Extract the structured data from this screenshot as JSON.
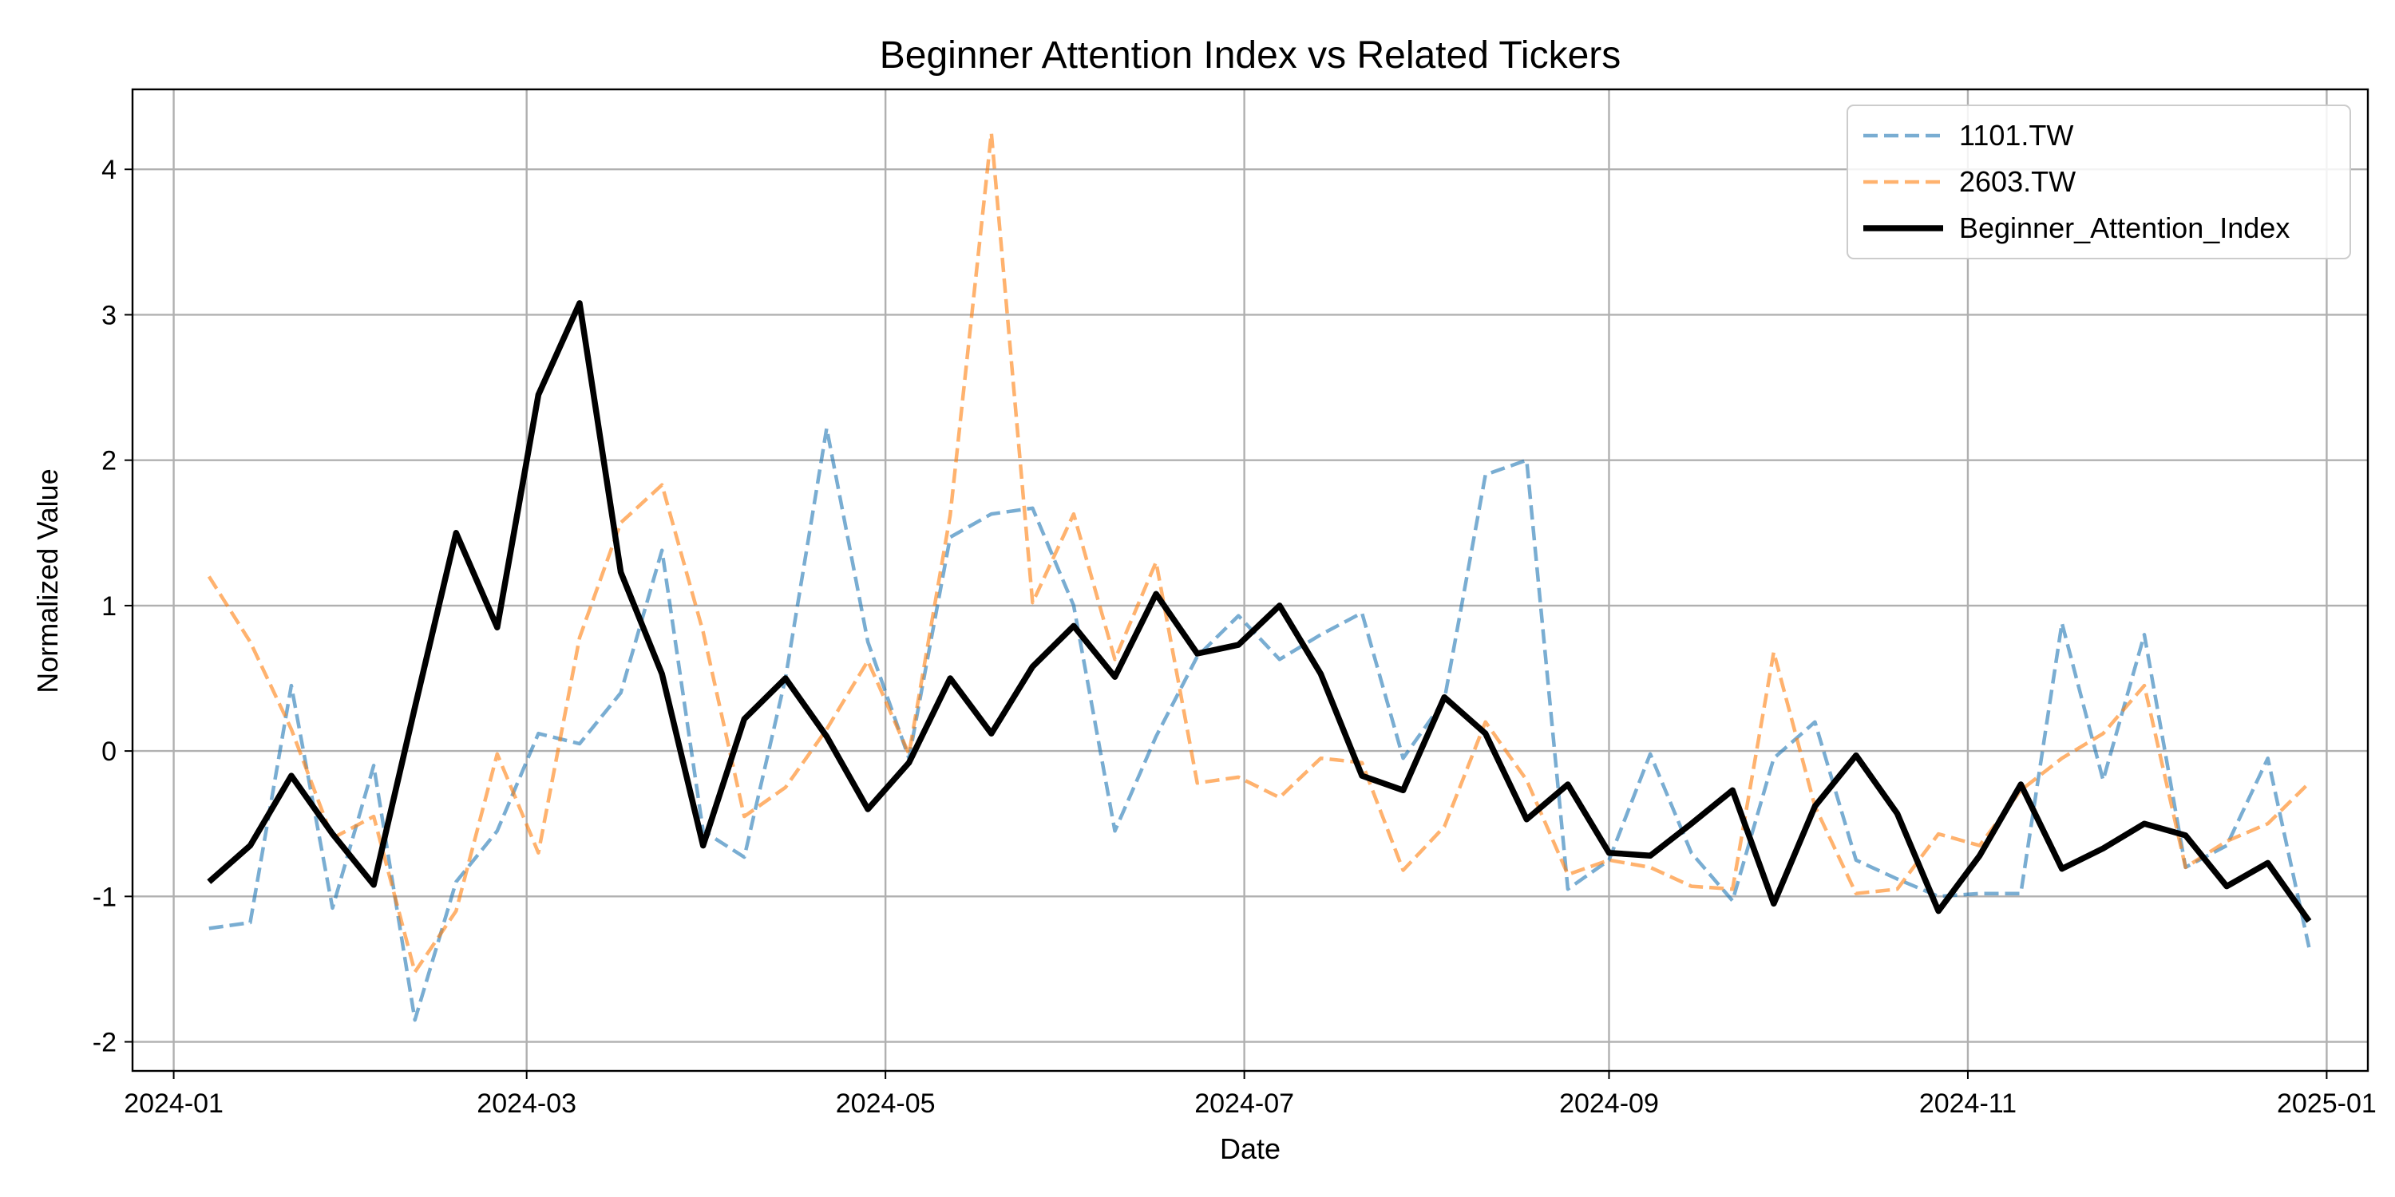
{
  "chart_data": {
    "type": "line",
    "title": "Beginner Attention Index vs Related Tickers",
    "xlabel": "Date",
    "ylabel": "Normalized Value",
    "xlim": [
      "2023-12-25",
      "2025-01-08"
    ],
    "ylim": [
      -2.2,
      4.55
    ],
    "grid": true,
    "legend_position": "top-right",
    "x_ticks": [
      "2024-01-01",
      "2024-03-01",
      "2024-05-01",
      "2024-07-01",
      "2024-09-01",
      "2024-11-01",
      "2025-01-01"
    ],
    "x_tick_labels": [
      "2024-01",
      "2024-03",
      "2024-05",
      "2024-07",
      "2024-09",
      "2024-11",
      "2025-01"
    ],
    "y_ticks": [
      -2,
      -1,
      0,
      1,
      2,
      3,
      4
    ],
    "y_tick_labels": [
      "-2",
      "-1",
      "0",
      "1",
      "2",
      "3",
      "4"
    ],
    "x": [
      "2024-01-07",
      "2024-01-14",
      "2024-01-21",
      "2024-01-28",
      "2024-02-04",
      "2024-02-11",
      "2024-02-18",
      "2024-02-25",
      "2024-03-03",
      "2024-03-10",
      "2024-03-17",
      "2024-03-24",
      "2024-03-31",
      "2024-04-07",
      "2024-04-14",
      "2024-04-21",
      "2024-04-28",
      "2024-05-05",
      "2024-05-12",
      "2024-05-19",
      "2024-05-26",
      "2024-06-02",
      "2024-06-09",
      "2024-06-16",
      "2024-06-23",
      "2024-06-30",
      "2024-07-07",
      "2024-07-14",
      "2024-07-21",
      "2024-07-28",
      "2024-08-04",
      "2024-08-11",
      "2024-08-18",
      "2024-08-25",
      "2024-09-01",
      "2024-09-08",
      "2024-09-15",
      "2024-09-22",
      "2024-09-29",
      "2024-10-06",
      "2024-10-13",
      "2024-10-20",
      "2024-10-27",
      "2024-11-03",
      "2024-11-10",
      "2024-11-17",
      "2024-11-24",
      "2024-12-01",
      "2024-12-08",
      "2024-12-15",
      "2024-12-22",
      "2024-12-29"
    ],
    "series": [
      {
        "name": "1101.TW",
        "color": "#1f77b4",
        "style": "dashed",
        "opacity": 0.6,
        "values": [
          -1.22,
          -1.18,
          0.45,
          -1.08,
          -0.1,
          -1.85,
          -0.9,
          -0.55,
          0.12,
          0.05,
          0.4,
          1.38,
          -0.55,
          -0.73,
          0.5,
          2.22,
          0.75,
          -0.05,
          1.47,
          1.63,
          1.67,
          1.0,
          -0.55,
          0.1,
          0.65,
          0.93,
          0.63,
          0.8,
          0.95,
          -0.05,
          0.35,
          1.9,
          2.0,
          -0.95,
          -0.75,
          -0.02,
          -0.7,
          -1.03,
          -0.05,
          0.2,
          -0.75,
          -0.88,
          -1.0,
          -0.98,
          -0.98,
          0.88,
          -0.2,
          0.8,
          -0.8,
          -0.65,
          -0.05,
          -1.35
        ]
      },
      {
        "name": "2603.TW",
        "color": "#ff7f0e",
        "style": "dashed",
        "opacity": 0.6,
        "values": [
          1.2,
          0.75,
          0.15,
          -0.6,
          -0.45,
          -1.52,
          -1.1,
          -0.02,
          -0.7,
          0.78,
          1.57,
          1.83,
          0.82,
          -0.45,
          -0.25,
          0.15,
          0.62,
          -0.02,
          1.62,
          4.25,
          1.02,
          1.63,
          0.63,
          1.3,
          -0.22,
          -0.18,
          -0.32,
          -0.05,
          -0.08,
          -0.82,
          -0.52,
          0.2,
          -0.2,
          -0.85,
          -0.75,
          -0.8,
          -0.93,
          -0.95,
          0.68,
          -0.38,
          -0.98,
          -0.95,
          -0.57,
          -0.65,
          -0.27,
          -0.05,
          0.12,
          0.45,
          -0.8,
          -0.62,
          -0.5,
          -0.22
        ]
      },
      {
        "name": "Beginner_Attention_Index",
        "color": "#000000",
        "style": "solid",
        "opacity": 1,
        "values": [
          -0.9,
          -0.65,
          -0.17,
          -0.57,
          -0.92,
          0.3,
          1.5,
          0.85,
          2.45,
          3.08,
          1.23,
          0.53,
          -0.65,
          0.22,
          0.5,
          0.1,
          -0.4,
          -0.08,
          0.5,
          0.12,
          0.58,
          0.86,
          0.51,
          1.08,
          0.67,
          0.73,
          1.0,
          0.53,
          -0.17,
          -0.27,
          0.37,
          0.12,
          -0.47,
          -0.23,
          -0.7,
          -0.72,
          -0.5,
          -0.27,
          -1.05,
          -0.38,
          -0.03,
          -0.43,
          -1.1,
          -0.72,
          -0.23,
          -0.81,
          -0.67,
          -0.5,
          -0.58,
          -0.93,
          -0.77,
          -1.17
        ]
      }
    ]
  }
}
